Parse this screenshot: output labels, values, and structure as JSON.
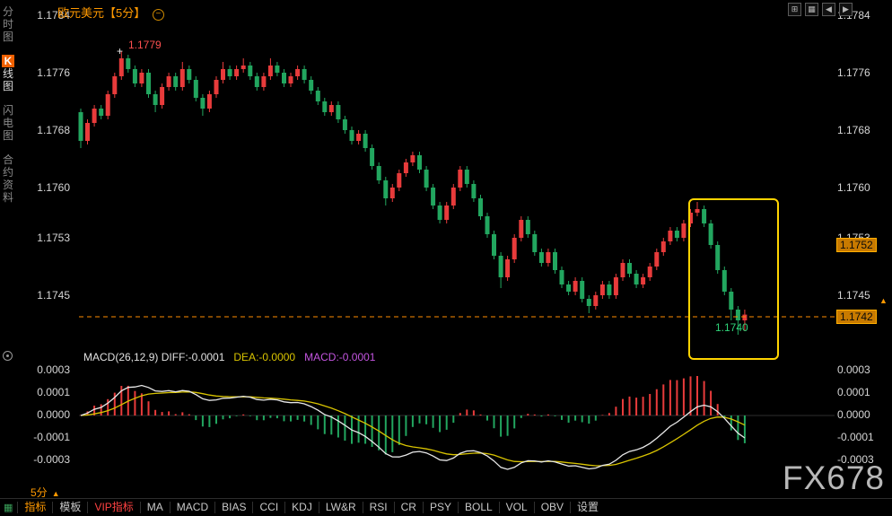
{
  "header": {
    "title": "欧元美元【5分】",
    "collapse_icon": "−",
    "tool_icons": [
      {
        "name": "fullscreen-icon",
        "glyph": "⊞"
      },
      {
        "name": "grid-icon",
        "glyph": "▦"
      },
      {
        "name": "pan-left-icon",
        "glyph": "◀"
      },
      {
        "name": "pan-right-icon",
        "glyph": "▶"
      }
    ]
  },
  "sidebar": {
    "items": [
      {
        "id": "time-chart",
        "badge": "",
        "label": "分时图",
        "active": false
      },
      {
        "id": "kline-chart",
        "badge": "K",
        "label": "线图",
        "active": true
      },
      {
        "id": "lightning-chart",
        "badge": "",
        "label": "闪电图",
        "active": false
      },
      {
        "id": "contract-info",
        "badge": "",
        "label": "合约资料",
        "active": false
      }
    ]
  },
  "price_tags": {
    "ref": "1.1752",
    "current": "1.1742",
    "marker_icon": "▲"
  },
  "annotations": {
    "high": "1.1779",
    "low": "1.1740",
    "cross_icon": "+"
  },
  "macd_header": {
    "parts": [
      {
        "text": "MACD(26,12,9) DIFF:-0.0001",
        "color": "#e0e0e0"
      },
      {
        "text": "DEA:-0.0000",
        "color": "#d9c400"
      },
      {
        "text": "MACD:-0.0001",
        "color": "#c455e0"
      }
    ]
  },
  "footer": {
    "period": "5分",
    "dropdown_icon": "▲",
    "grid_icon": "▦",
    "tabs": [
      {
        "id": "indicator",
        "label": "指标",
        "style": "active"
      },
      {
        "id": "template",
        "label": "模板",
        "style": "normal"
      },
      {
        "id": "vip-indicator",
        "label": "VIP指标",
        "style": "vip"
      },
      {
        "id": "ma",
        "label": "MA",
        "style": "normal"
      },
      {
        "id": "macd",
        "label": "MACD",
        "style": "normal"
      },
      {
        "id": "bias",
        "label": "BIAS",
        "style": "normal"
      },
      {
        "id": "cci",
        "label": "CCI",
        "style": "normal"
      },
      {
        "id": "kdj",
        "label": "KDJ",
        "style": "normal"
      },
      {
        "id": "lwr",
        "label": "LW&R",
        "style": "normal"
      },
      {
        "id": "rsi",
        "label": "RSI",
        "style": "normal"
      },
      {
        "id": "cr",
        "label": "CR",
        "style": "normal"
      },
      {
        "id": "psy",
        "label": "PSY",
        "style": "normal"
      },
      {
        "id": "boll",
        "label": "BOLL",
        "style": "normal"
      },
      {
        "id": "vol",
        "label": "VOL",
        "style": "normal"
      },
      {
        "id": "obv",
        "label": "OBV",
        "style": "normal"
      },
      {
        "id": "settings",
        "label": "设置",
        "style": "normal"
      }
    ]
  },
  "watermark": "FX678",
  "chart_data": {
    "type": "candlestick",
    "symbol": "欧元美元",
    "interval": "5分",
    "price_base": 1.17,
    "price_unit": 0.0001,
    "y_ticks": [
      1.1784,
      1.1776,
      1.1768,
      1.176,
      1.1753,
      1.1745
    ],
    "current_price": 1.1742,
    "ref_price": 1.1752,
    "high_annotation": 1.1779,
    "low_annotation": 1.174,
    "up_color": "#e83b3b",
    "down_color": "#22a65f",
    "candles_ohlc_pips": [
      [
        70.5,
        71,
        65.5,
        66.5
      ],
      [
        66.5,
        69.5,
        66,
        69
      ],
      [
        69,
        71.5,
        68.5,
        71
      ],
      [
        71,
        71.5,
        69.5,
        70
      ],
      [
        70,
        73.5,
        69.5,
        73
      ],
      [
        73,
        76,
        72.5,
        75.5
      ],
      [
        75.5,
        79,
        75,
        78
      ],
      [
        78,
        78.5,
        76,
        76.5
      ],
      [
        76.5,
        77,
        74,
        74.5
      ],
      [
        74.5,
        76.5,
        74,
        76
      ],
      [
        76,
        76.5,
        72.5,
        73
      ],
      [
        73,
        73.5,
        70.5,
        71.5
      ],
      [
        71.5,
        74.5,
        71,
        74
      ],
      [
        74,
        76,
        73.5,
        75.5
      ],
      [
        75.5,
        76,
        73.5,
        74
      ],
      [
        74,
        77.5,
        73.5,
        76.5
      ],
      [
        76.5,
        77,
        74.5,
        75
      ],
      [
        75,
        75.5,
        72,
        72.5
      ],
      [
        72.5,
        73,
        70,
        71
      ],
      [
        71,
        73.5,
        70.5,
        73
      ],
      [
        73,
        75.5,
        72.5,
        75
      ],
      [
        75,
        77.5,
        74.5,
        76.5
      ],
      [
        76.5,
        77,
        75,
        75.5
      ],
      [
        75.5,
        77,
        75,
        76.5
      ],
      [
        76.5,
        78,
        76,
        77
      ],
      [
        77,
        77.5,
        75,
        75.5
      ],
      [
        75.5,
        76,
        73.5,
        74
      ],
      [
        74,
        76,
        73.5,
        75.5
      ],
      [
        75.5,
        78,
        75,
        77
      ],
      [
        77,
        77.5,
        75.5,
        76
      ],
      [
        76,
        76.5,
        74,
        74.5
      ],
      [
        74.5,
        76,
        74,
        75.5
      ],
      [
        75.5,
        77,
        75,
        76.5
      ],
      [
        76.5,
        77,
        74.5,
        75
      ],
      [
        75,
        75.5,
        73,
        73.5
      ],
      [
        73.5,
        74,
        71.5,
        72
      ],
      [
        72,
        72.5,
        70,
        70.5
      ],
      [
        70.5,
        72,
        70,
        71.5
      ],
      [
        71.5,
        72,
        69,
        69.5
      ],
      [
        69.5,
        70,
        67.5,
        68
      ],
      [
        68,
        68.5,
        66,
        66.5
      ],
      [
        66.5,
        68,
        66,
        67.5
      ],
      [
        67.5,
        68,
        65,
        65.5
      ],
      [
        65.5,
        66,
        62.5,
        63
      ],
      [
        63,
        63.5,
        60.5,
        61
      ],
      [
        61,
        61.5,
        57.5,
        58.5
      ],
      [
        58.5,
        60.5,
        58,
        60
      ],
      [
        60,
        62.5,
        59.5,
        62
      ],
      [
        62,
        64,
        61.5,
        63.5
      ],
      [
        63.5,
        65,
        63,
        64.5
      ],
      [
        64.5,
        65,
        62,
        62.5
      ],
      [
        62.5,
        63,
        59.5,
        60
      ],
      [
        60,
        60.5,
        57,
        57.5
      ],
      [
        57.5,
        58,
        55,
        55.5
      ],
      [
        55.5,
        58,
        55,
        57.5
      ],
      [
        57.5,
        60.5,
        57,
        60
      ],
      [
        60,
        63,
        59.5,
        62.5
      ],
      [
        62.5,
        63,
        60,
        60.5
      ],
      [
        60.5,
        61,
        58,
        58.5
      ],
      [
        58.5,
        59,
        55.5,
        56
      ],
      [
        56,
        56.5,
        53,
        53.5
      ],
      [
        53.5,
        54,
        50,
        50.5
      ],
      [
        50.5,
        51,
        46,
        47.5
      ],
      [
        47.5,
        50.5,
        47,
        50
      ],
      [
        50,
        53.5,
        49.5,
        53
      ],
      [
        53,
        56,
        52.5,
        55.5
      ],
      [
        55.5,
        56,
        53,
        53.5
      ],
      [
        53.5,
        54,
        50.5,
        51
      ],
      [
        51,
        51.5,
        49,
        49.5
      ],
      [
        49.5,
        51.5,
        49,
        51
      ],
      [
        51,
        51.5,
        48,
        48.5
      ],
      [
        48.5,
        49,
        46,
        46.5
      ],
      [
        46.5,
        47,
        45,
        45.5
      ],
      [
        45.5,
        47.5,
        45,
        47
      ],
      [
        47,
        47.5,
        44,
        44.5
      ],
      [
        44.5,
        45,
        42.5,
        43.5
      ],
      [
        43.5,
        45.5,
        43,
        45
      ],
      [
        45,
        47,
        44.5,
        46.5
      ],
      [
        46.5,
        47,
        44.5,
        45
      ],
      [
        45,
        48,
        44.5,
        47.5
      ],
      [
        47.5,
        50,
        47,
        49.5
      ],
      [
        49.5,
        50,
        47.5,
        48
      ],
      [
        48,
        48.5,
        46,
        46.5
      ],
      [
        46.5,
        48,
        46,
        47.5
      ],
      [
        47.5,
        49.5,
        47,
        49
      ],
      [
        49,
        51.5,
        48.5,
        51
      ],
      [
        51,
        53,
        50.5,
        52.5
      ],
      [
        52.5,
        54.5,
        52,
        54
      ],
      [
        54,
        54.5,
        52.5,
        53
      ],
      [
        53,
        55.5,
        52.5,
        55
      ],
      [
        55,
        57,
        54.5,
        56.5
      ],
      [
        56.5,
        58,
        56,
        57
      ],
      [
        57,
        57.5,
        54.5,
        55
      ],
      [
        55,
        55.5,
        51.5,
        52
      ],
      [
        52,
        52.5,
        48,
        48.5
      ],
      [
        48.5,
        49,
        45,
        45.5
      ],
      [
        45.5,
        46,
        41.5,
        43
      ],
      [
        43,
        43.5,
        39.5,
        41.5
      ],
      [
        41.5,
        43,
        40,
        42.3
      ]
    ],
    "indicator": {
      "type": "macd",
      "params": [
        26,
        12,
        9
      ],
      "values": {
        "diff": -0.0001,
        "dea": -0.0,
        "macd": -0.0001
      },
      "y_ticks": [
        "0.0003",
        "0.0001",
        "0.0000",
        "-0.0001",
        "-0.0003"
      ],
      "diff_color": "#e8e8e8",
      "dea_color": "#d9c400",
      "hist_pos_color": "#e83b3b",
      "hist_neg_color": "#22a65f"
    }
  }
}
